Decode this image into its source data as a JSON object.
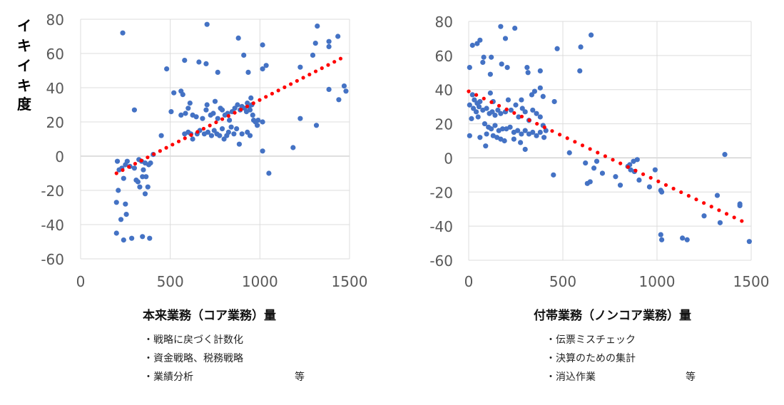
{
  "y_axis_label_chars": [
    "イ",
    "キ",
    "イ",
    "キ",
    "度"
  ],
  "chart_data": [
    {
      "type": "scatter",
      "xlabel": "本来業務（コア業務）量",
      "ylabel": "イキイキ度",
      "xlim": [
        0,
        1500
      ],
      "ylim": [
        -60,
        80
      ],
      "xticks": [
        0,
        500,
        1000,
        1500
      ],
      "yticks": [
        -60,
        -40,
        -20,
        0,
        20,
        40,
        60,
        80
      ],
      "grid": true,
      "point_color": "#4472C4",
      "trend_color": "#FF0000",
      "trendline": {
        "type": "linear",
        "x": [
          200,
          1450
        ],
        "y": [
          -10,
          57
        ]
      },
      "points": [
        [
          235,
          72
        ],
        [
          705,
          77
        ],
        [
          880,
          69
        ],
        [
          1320,
          76
        ],
        [
          1385,
          67
        ],
        [
          1385,
          64
        ],
        [
          1435,
          70
        ],
        [
          1015,
          65
        ],
        [
          1295,
          59
        ],
        [
          1310,
          66
        ],
        [
          660,
          55
        ],
        [
          700,
          54
        ],
        [
          580,
          56
        ],
        [
          910,
          59
        ],
        [
          765,
          49
        ],
        [
          480,
          51
        ],
        [
          935,
          49
        ],
        [
          1035,
          53
        ],
        [
          1015,
          51
        ],
        [
          1225,
          52
        ],
        [
          520,
          37
        ],
        [
          560,
          38
        ],
        [
          570,
          36
        ],
        [
          1385,
          39
        ],
        [
          1470,
          41
        ],
        [
          1480,
          38
        ],
        [
          1440,
          33
        ],
        [
          300,
          27
        ],
        [
          505,
          26
        ],
        [
          560,
          24
        ],
        [
          585,
          25
        ],
        [
          600,
          28
        ],
        [
          610,
          31
        ],
        [
          625,
          24
        ],
        [
          645,
          23
        ],
        [
          680,
          22
        ],
        [
          700,
          27
        ],
        [
          705,
          30
        ],
        [
          725,
          24
        ],
        [
          740,
          25
        ],
        [
          750,
          32
        ],
        [
          765,
          22
        ],
        [
          780,
          28
        ],
        [
          790,
          27
        ],
        [
          805,
          24
        ],
        [
          820,
          25
        ],
        [
          830,
          21
        ],
        [
          845,
          26
        ],
        [
          860,
          28
        ],
        [
          875,
          30
        ],
        [
          890,
          27
        ],
        [
          900,
          29
        ],
        [
          915,
          28
        ],
        [
          925,
          26
        ],
        [
          930,
          31
        ],
        [
          940,
          29
        ],
        [
          945,
          27
        ],
        [
          950,
          34
        ],
        [
          955,
          30
        ],
        [
          960,
          24
        ],
        [
          965,
          21
        ],
        [
          975,
          20
        ],
        [
          985,
          18
        ],
        [
          990,
          21
        ],
        [
          1015,
          20
        ],
        [
          1225,
          22
        ],
        [
          1315,
          18
        ],
        [
          580,
          13
        ],
        [
          600,
          14
        ],
        [
          615,
          13
        ],
        [
          625,
          10
        ],
        [
          650,
          13
        ],
        [
          665,
          15
        ],
        [
          690,
          13
        ],
        [
          710,
          14
        ],
        [
          730,
          12
        ],
        [
          745,
          15
        ],
        [
          760,
          13
        ],
        [
          775,
          12
        ],
        [
          790,
          16
        ],
        [
          800,
          10
        ],
        [
          815,
          12
        ],
        [
          825,
          14
        ],
        [
          840,
          17
        ],
        [
          855,
          13
        ],
        [
          870,
          16
        ],
        [
          885,
          7
        ],
        [
          900,
          13
        ],
        [
          930,
          14
        ],
        [
          945,
          12
        ],
        [
          450,
          12
        ],
        [
          1015,
          3
        ],
        [
          1185,
          5
        ],
        [
          205,
          -3
        ],
        [
          215,
          -8
        ],
        [
          230,
          -7
        ],
        [
          250,
          -5
        ],
        [
          260,
          -3
        ],
        [
          275,
          -6
        ],
        [
          300,
          -7
        ],
        [
          310,
          -14
        ],
        [
          320,
          -15
        ],
        [
          325,
          -2
        ],
        [
          340,
          -3
        ],
        [
          350,
          -8
        ],
        [
          360,
          -4
        ],
        [
          380,
          -5
        ],
        [
          390,
          -4
        ],
        [
          405,
          1
        ],
        [
          330,
          -18
        ],
        [
          345,
          -12
        ],
        [
          365,
          -12
        ],
        [
          375,
          -18
        ],
        [
          360,
          -22
        ],
        [
          240,
          -13
        ],
        [
          210,
          -20
        ],
        [
          200,
          -27
        ],
        [
          250,
          -28
        ],
        [
          255,
          -34
        ],
        [
          225,
          -37
        ],
        [
          200,
          -45
        ],
        [
          240,
          -49
        ],
        [
          285,
          -48
        ],
        [
          345,
          -47
        ],
        [
          385,
          -48
        ],
        [
          1050,
          -10
        ]
      ]
    },
    {
      "type": "scatter",
      "xlabel": "付帯業務（ノンコア業務）量",
      "xlim": [
        0,
        1500
      ],
      "ylim": [
        -60,
        80
      ],
      "xticks": [
        0,
        500,
        1000,
        1500
      ],
      "yticks": [
        -60,
        -40,
        -20,
        0,
        20,
        40,
        60,
        80
      ],
      "grid": true,
      "point_color": "#4472C4",
      "trend_color": "#FF0000",
      "trendline": {
        "type": "linear",
        "x": [
          0,
          1450
        ],
        "y": [
          39,
          -37
        ]
      },
      "points": [
        [
          170,
          77
        ],
        [
          245,
          76
        ],
        [
          650,
          72
        ],
        [
          60,
          69
        ],
        [
          45,
          67
        ],
        [
          20,
          66
        ],
        [
          195,
          70
        ],
        [
          595,
          65
        ],
        [
          470,
          64
        ],
        [
          80,
          59
        ],
        [
          120,
          59
        ],
        [
          75,
          56
        ],
        [
          175,
          55
        ],
        [
          5,
          53
        ],
        [
          205,
          53
        ],
        [
          310,
          53
        ],
        [
          115,
          49
        ],
        [
          315,
          50
        ],
        [
          380,
          51
        ],
        [
          590,
          51
        ],
        [
          20,
          37
        ],
        [
          30,
          34
        ],
        [
          45,
          32
        ],
        [
          60,
          33
        ],
        [
          115,
          38
        ],
        [
          130,
          33
        ],
        [
          210,
          34
        ],
        [
          280,
          34
        ],
        [
          335,
          37
        ],
        [
          350,
          39
        ],
        [
          380,
          41
        ],
        [
          395,
          36
        ],
        [
          5,
          31
        ],
        [
          25,
          29
        ],
        [
          40,
          27
        ],
        [
          55,
          30
        ],
        [
          75,
          28
        ],
        [
          95,
          29
        ],
        [
          110,
          26
        ],
        [
          125,
          27
        ],
        [
          140,
          25
        ],
        [
          155,
          28
        ],
        [
          170,
          26
        ],
        [
          195,
          27
        ],
        [
          225,
          28
        ],
        [
          250,
          31
        ],
        [
          265,
          24
        ],
        [
          285,
          29
        ],
        [
          300,
          27
        ],
        [
          320,
          22
        ],
        [
          340,
          28
        ],
        [
          360,
          26
        ],
        [
          380,
          24
        ],
        [
          395,
          19
        ],
        [
          15,
          23
        ],
        [
          50,
          24
        ],
        [
          85,
          20
        ],
        [
          105,
          18
        ],
        [
          120,
          17
        ],
        [
          140,
          19
        ],
        [
          160,
          16
        ],
        [
          180,
          17
        ],
        [
          200,
          17
        ],
        [
          220,
          18
        ],
        [
          240,
          15
        ],
        [
          260,
          16
        ],
        [
          280,
          14
        ],
        [
          300,
          16
        ],
        [
          320,
          14
        ],
        [
          340,
          15
        ],
        [
          360,
          13
        ],
        [
          380,
          15
        ],
        [
          400,
          12
        ],
        [
          410,
          16
        ],
        [
          5,
          13
        ],
        [
          60,
          12
        ],
        [
          95,
          14
        ],
        [
          130,
          13
        ],
        [
          150,
          12
        ],
        [
          170,
          11
        ],
        [
          190,
          10
        ],
        [
          240,
          11
        ],
        [
          275,
          9
        ],
        [
          90,
          7
        ],
        [
          300,
          5
        ],
        [
          455,
          33
        ],
        [
          450,
          -10
        ],
        [
          535,
          3
        ],
        [
          620,
          -3
        ],
        [
          630,
          -15
        ],
        [
          645,
          -14
        ],
        [
          665,
          -6
        ],
        [
          680,
          -2
        ],
        [
          710,
          -9
        ],
        [
          780,
          -11
        ],
        [
          845,
          -5
        ],
        [
          855,
          -4
        ],
        [
          860,
          -7
        ],
        [
          875,
          -2
        ],
        [
          895,
          -1
        ],
        [
          880,
          -8
        ],
        [
          905,
          -13
        ],
        [
          960,
          -17
        ],
        [
          990,
          -7
        ],
        [
          1020,
          -19
        ],
        [
          1025,
          -20
        ],
        [
          1020,
          -45
        ],
        [
          1025,
          -48
        ],
        [
          1135,
          -47
        ],
        [
          1160,
          -48
        ],
        [
          1250,
          -34
        ],
        [
          1320,
          -22
        ],
        [
          1335,
          -38
        ],
        [
          1360,
          2
        ],
        [
          1440,
          -27
        ],
        [
          1440,
          -28
        ],
        [
          1490,
          -49
        ],
        [
          805,
          -16
        ]
      ]
    }
  ],
  "notes_left": [
    "・戦略に戻づく計数化",
    "・資金戦略、税務戦略",
    "・業績分析"
  ],
  "notes_right": [
    "・伝票ミスチェック",
    "・決算のための集計",
    "・消込作業"
  ],
  "etc_left": "等",
  "etc_right": "等"
}
